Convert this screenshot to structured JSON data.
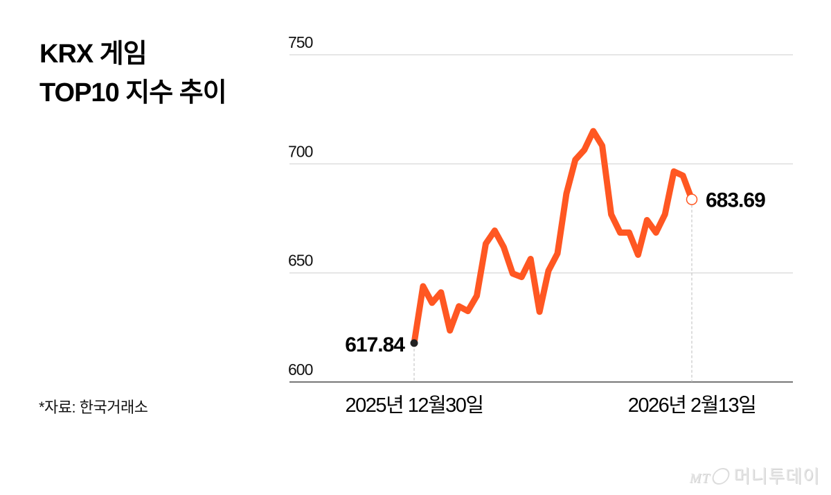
{
  "title": {
    "line1": "KRX 게임",
    "line2": "TOP10 지수 추이"
  },
  "source": "*자료: 한국거래소",
  "watermark": {
    "mt": "MT",
    "name": "머니투데이"
  },
  "colors": {
    "line": "#FF5722",
    "grid": "#dddddd",
    "axis": "#777777",
    "start_marker": "#222222",
    "end_marker_fill": "#ffffff"
  },
  "chart_data": {
    "type": "line",
    "title": "KRX 게임 TOP10 지수 추이",
    "xlabel": "",
    "ylabel": "",
    "ylim": [
      600,
      750
    ],
    "yticks": [
      600,
      650,
      700,
      750
    ],
    "grid": true,
    "legend": "none",
    "x_tick_labels": [
      {
        "index": 0,
        "label": "2025년 12월30일"
      },
      {
        "index": 31,
        "label": "2026년 2월13일"
      }
    ],
    "annotations": [
      {
        "index": 0,
        "label": "617.84"
      },
      {
        "index": 31,
        "label": "683.69"
      }
    ],
    "series": [
      {
        "name": "KRX 게임 TOP10",
        "values": [
          617.84,
          643.9,
          636.3,
          641.1,
          623.6,
          634.7,
          632.5,
          639.5,
          663.4,
          669.4,
          661.8,
          649.7,
          648.1,
          656.4,
          632.2,
          651.0,
          658.9,
          686.3,
          701.9,
          706.4,
          715.0,
          708.3,
          676.8,
          668.5,
          668.5,
          658.3,
          674.2,
          668.5,
          676.8,
          696.5,
          694.6,
          683.69
        ]
      }
    ],
    "start_label": "617.84",
    "end_label": "683.69",
    "start_date": "2025년 12월30일",
    "end_date": "2026년 2월13일"
  }
}
